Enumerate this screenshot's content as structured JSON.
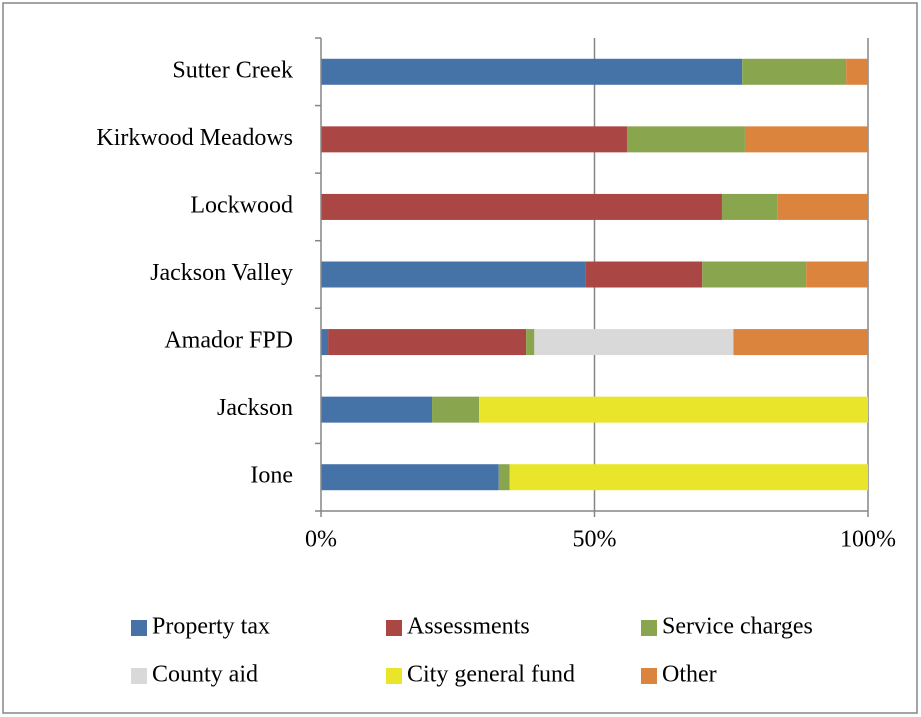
{
  "chart_data": {
    "type": "stacked-bar-100",
    "categories": [
      "Sutter Creek",
      "Kirkwood Meadows",
      "Lockwood",
      "Jackson Valley",
      "Amador FPD",
      "Jackson",
      "Ione"
    ],
    "series": [
      {
        "name": "Property tax",
        "color": "#4572a7",
        "values": [
          77,
          0,
          0,
          48.3,
          1.3,
          20.3,
          32.5
        ]
      },
      {
        "name": "Assessments",
        "color": "#aa4643",
        "values": [
          0,
          56,
          73.3,
          21.4,
          36.2,
          0,
          0
        ]
      },
      {
        "name": "Service charges",
        "color": "#89a54e",
        "values": [
          19,
          21.5,
          10.2,
          19,
          1.5,
          8.6,
          2
        ]
      },
      {
        "name": "County aid",
        "color": "#d9d9d9",
        "values": [
          0,
          0,
          0,
          0,
          36.4,
          0,
          0
        ]
      },
      {
        "name": "City general fund",
        "color": "#e8e52a",
        "values": [
          0,
          0,
          0,
          0,
          0,
          71.1,
          65.5
        ]
      },
      {
        "name": "Other",
        "color": "#db843d",
        "values": [
          4,
          22.5,
          16.5,
          11.3,
          24.6,
          0,
          0
        ]
      }
    ],
    "xlim": [
      0,
      100
    ],
    "xticks": [
      {
        "value": 0,
        "label": "0%"
      },
      {
        "value": 50,
        "label": "50%"
      },
      {
        "value": 100,
        "label": "100%"
      }
    ],
    "grid": true
  }
}
